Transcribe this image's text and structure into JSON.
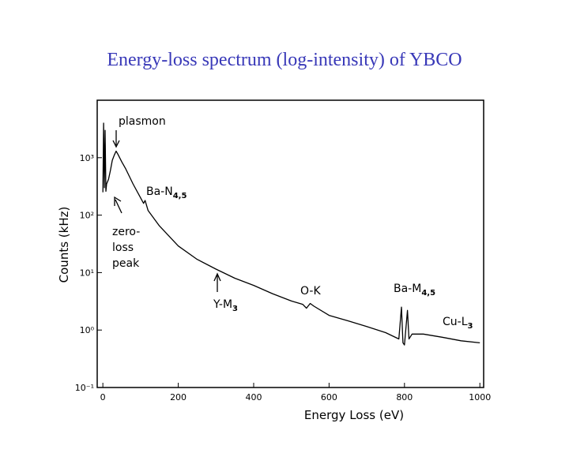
{
  "chart_data": {
    "type": "line",
    "title": "Energy-loss spectrum (log-intensity) of YBCO",
    "x_label": "Energy Loss (eV)",
    "y_label": "Counts (kHz)",
    "x": [
      0,
      2,
      4,
      6,
      8,
      10,
      15,
      20,
      25,
      30,
      35,
      40,
      50,
      60,
      80,
      100,
      108,
      112,
      120,
      150,
      200,
      250,
      300,
      350,
      400,
      450,
      500,
      530,
      540,
      550,
      560,
      600,
      650,
      700,
      750,
      785,
      792,
      796,
      800,
      808,
      812,
      820,
      850,
      900,
      950,
      1000
    ],
    "values": [
      250,
      4000,
      300,
      3000,
      260,
      350,
      420,
      600,
      900,
      1100,
      1300,
      1150,
      850,
      650,
      350,
      200,
      160,
      180,
      120,
      65,
      29,
      17,
      11.5,
      8,
      6,
      4.3,
      3.2,
      2.8,
      2.4,
      2.9,
      2.6,
      1.8,
      1.45,
      1.15,
      0.9,
      0.7,
      2.5,
      0.6,
      0.55,
      2.2,
      0.7,
      0.85,
      0.85,
      0.75,
      0.65,
      0.6
    ],
    "color": "#000000",
    "log_y": true,
    "xlim": [
      -15,
      1010
    ],
    "xticks": [
      0,
      200,
      400,
      600,
      800,
      1000
    ],
    "ylim": [
      0.1,
      10000
    ],
    "yticks": [
      {
        "value": 0.1,
        "label": "10⁻¹"
      },
      {
        "value": 1,
        "label": "10⁰"
      },
      {
        "value": 10,
        "label": "10¹"
      },
      {
        "value": 100,
        "label": "10²"
      },
      {
        "value": 1000,
        "label": "10³"
      }
    ],
    "annotations": [
      {
        "text": "plasmon"
      },
      {
        "lines": [
          "zero-",
          "loss",
          "peak"
        ]
      },
      {
        "text": "Ba-N",
        "sub": "4,5"
      },
      {
        "text": "Y-M",
        "sub": "3"
      },
      {
        "text": "O-K"
      },
      {
        "text": "Ba-M",
        "sub": "4,5"
      },
      {
        "text": "Cu-L",
        "sub": "3"
      }
    ]
  }
}
